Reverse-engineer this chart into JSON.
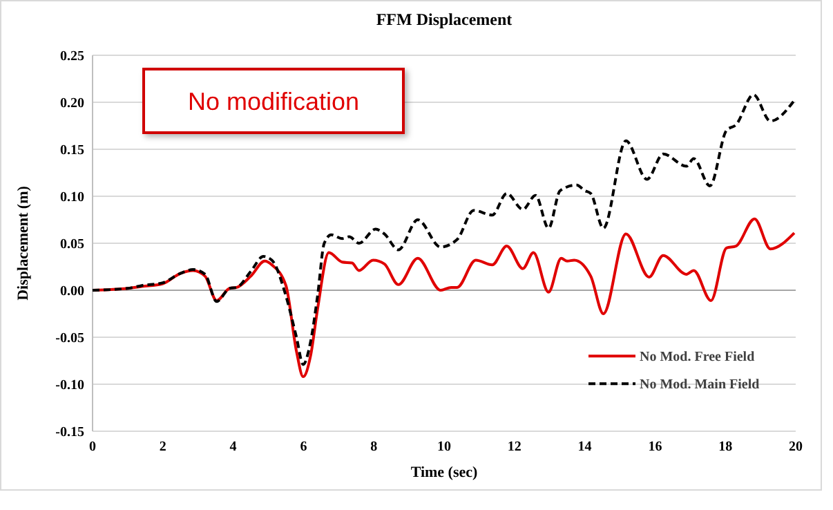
{
  "chart_data": {
    "type": "line",
    "title": "FFM Displacement",
    "xlabel": "Time (sec)",
    "ylabel": "Displacement (m)",
    "annotations": [
      "No modification"
    ],
    "xlim": [
      0,
      20
    ],
    "xticks": [
      0,
      2,
      4,
      6,
      8,
      10,
      12,
      14,
      16,
      18,
      20
    ],
    "ylim": [
      -0.15,
      0.25
    ],
    "yticks": [
      {
        "value": -0.15,
        "label": "-0.15"
      },
      {
        "value": -0.1,
        "label": "-0.10"
      },
      {
        "value": -0.05,
        "label": "-0.05"
      },
      {
        "value": 0,
        "label": "0.00"
      },
      {
        "value": 0.05,
        "label": "0.05"
      },
      {
        "value": 0.1,
        "label": "0.10"
      },
      {
        "value": 0.15,
        "label": "0.15"
      },
      {
        "value": 0.2,
        "label": "0.20"
      },
      {
        "value": 0.25,
        "label": "0.25"
      }
    ],
    "grid": "y",
    "legend": "bottom right",
    "series": [
      {
        "name": "No Mod. Free Field",
        "color": "#e00000",
        "line_style": "solid",
        "x": [
          0,
          1,
          1.4,
          2,
          2.5,
          2.86,
          3.2,
          3.53,
          3.9,
          4.1,
          4.5,
          4.9,
          5.1,
          5.5,
          5.8,
          5.99,
          6.2,
          6.4,
          6.72,
          7.1,
          7.38,
          7.58,
          7.98,
          8.3,
          8.7,
          9.25,
          9.9,
          10.2,
          10.37,
          10.9,
          11.37,
          11.78,
          12.24,
          12.54,
          12.97,
          13.33,
          13.5,
          13.7,
          14.17,
          14.53,
          15.17,
          15.83,
          16.23,
          16.89,
          17.1,
          17.59,
          18.03,
          18.3,
          18.83,
          19.28,
          19.96
        ],
        "values": [
          0,
          0.002,
          0.004,
          0.007,
          0.018,
          0.021,
          0.015,
          -0.011,
          0.002,
          0.003,
          0.015,
          0.031,
          0.027,
          0.005,
          -0.065,
          -0.092,
          -0.07,
          -0.02,
          0.04,
          0.03,
          0.029,
          0.021,
          0.032,
          0.028,
          0.006,
          0.034,
          0,
          0.003,
          0.003,
          0.032,
          0.027,
          0.047,
          0.023,
          0.04,
          -0.002,
          0.034,
          0.031,
          0.032,
          0.015,
          -0.025,
          0.06,
          0.014,
          0.037,
          0.017,
          0.021,
          -0.011,
          0.045,
          0.047,
          0.076,
          0.044,
          0.061
        ]
      },
      {
        "name": "No Mod. Main Field",
        "color": "#000000",
        "line_style": "dashed",
        "x": [
          0,
          1,
          1.4,
          2,
          2.5,
          2.86,
          3.2,
          3.53,
          3.9,
          4.1,
          4.5,
          4.86,
          5.1,
          5.5,
          5.8,
          5.99,
          6.2,
          6.4,
          6.59,
          6.79,
          7.1,
          7.3,
          7.58,
          8.05,
          8.3,
          8.7,
          9.25,
          9.9,
          10.37,
          10.84,
          11.37,
          11.78,
          12.24,
          12.6,
          12.97,
          13.3,
          13.77,
          14,
          14.17,
          14.53,
          15.17,
          15.77,
          16.23,
          16.89,
          17.1,
          17.56,
          18.03,
          18.3,
          18.8,
          19.28,
          19.96
        ],
        "values": [
          0,
          0.002,
          0.005,
          0.008,
          0.018,
          0.022,
          0.017,
          -0.012,
          0.002,
          0.003,
          0.02,
          0.036,
          0.032,
          -0.006,
          -0.05,
          -0.079,
          -0.055,
          -0.006,
          0.05,
          0.059,
          0.055,
          0.057,
          0.05,
          0.065,
          0.06,
          0.043,
          0.075,
          0.046,
          0.054,
          0.085,
          0.08,
          0.103,
          0.086,
          0.101,
          0.066,
          0.106,
          0.112,
          0.106,
          0.103,
          0.066,
          0.159,
          0.118,
          0.145,
          0.132,
          0.14,
          0.111,
          0.17,
          0.176,
          0.208,
          0.18,
          0.202
        ]
      }
    ]
  }
}
